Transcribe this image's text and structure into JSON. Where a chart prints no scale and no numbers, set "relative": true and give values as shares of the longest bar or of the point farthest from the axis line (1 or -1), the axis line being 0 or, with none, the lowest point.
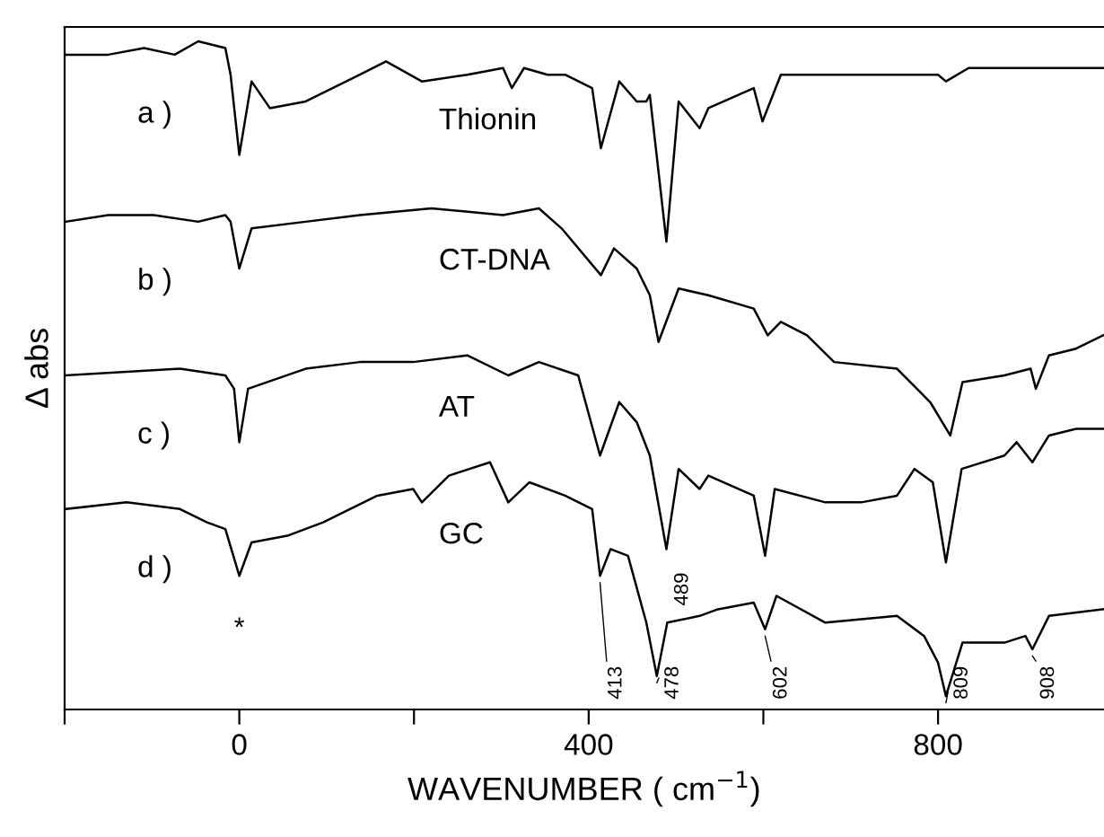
{
  "chart_data": {
    "type": "line",
    "relative": true,
    "xlabel": "WAVENUMBER ( cm$^{−1}$)",
    "ylabel": "Δ abs",
    "xlim": [
      -200,
      990
    ],
    "xticks": [
      {
        "value": -200,
        "label": null
      },
      0,
      {
        "value": 200,
        "label": null
      },
      400,
      {
        "value": 600,
        "label": null
      },
      800
    ],
    "grid": false,
    "legend": false,
    "marker": "none",
    "line_style": "solid",
    "tick_labels": "x",
    "series": [
      {
        "name": "Thionin",
        "color": "#000000",
        "x": [
          -199,
          -150,
          -109,
          -74,
          -47,
          -16,
          -10,
          0,
          14,
          35,
          76,
          138,
          168,
          209,
          261,
          302,
          312,
          326,
          353,
          373,
          404,
          414,
          435,
          455,
          466,
          470,
          489,
          503,
          527,
          537,
          589,
          599,
          620,
          671,
          753,
          800,
          809,
          835,
          989
        ],
        "values": [
          0.98,
          0.98,
          0.99,
          0.98,
          1.0,
          0.99,
          0.95,
          0.83,
          0.94,
          0.9,
          0.91,
          0.95,
          0.97,
          0.94,
          0.95,
          0.96,
          0.93,
          0.96,
          0.95,
          0.95,
          0.93,
          0.84,
          0.94,
          0.91,
          0.91,
          0.92,
          0.7,
          0.91,
          0.87,
          0.9,
          0.93,
          0.88,
          0.95,
          0.95,
          0.95,
          0.95,
          0.94,
          0.96,
          0.96
        ]
      },
      {
        "name": "CT-DNA",
        "color": "#000000",
        "x": [
          -199,
          -150,
          -98,
          -47,
          -16,
          -10,
          0,
          14,
          76,
          138,
          220,
          302,
          343,
          369,
          414,
          429,
          455,
          470,
          480,
          503,
          537,
          589,
          605,
          620,
          650,
          681,
          753,
          791,
          814,
          828,
          876,
          906,
          912,
          927,
          958,
          989
        ],
        "values": [
          0.73,
          0.74,
          0.74,
          0.73,
          0.74,
          0.73,
          0.66,
          0.72,
          0.73,
          0.74,
          0.75,
          0.74,
          0.75,
          0.72,
          0.65,
          0.69,
          0.66,
          0.62,
          0.55,
          0.63,
          0.62,
          0.6,
          0.56,
          0.58,
          0.56,
          0.52,
          0.51,
          0.46,
          0.41,
          0.49,
          0.5,
          0.51,
          0.48,
          0.53,
          0.54,
          0.56
        ]
      },
      {
        "name": "AT",
        "color": "#000000",
        "x": [
          -199,
          -68,
          -16,
          -6,
          0,
          10,
          76,
          138,
          199,
          261,
          308,
          343,
          388,
          413,
          435,
          455,
          470,
          489,
          503,
          527,
          537,
          589,
          602,
          613,
          671,
          712,
          753,
          773,
          794,
          809,
          827,
          876,
          890,
          908,
          927,
          958,
          989
        ],
        "values": [
          0.5,
          0.51,
          0.5,
          0.48,
          0.4,
          0.48,
          0.51,
          0.52,
          0.52,
          0.53,
          0.5,
          0.52,
          0.5,
          0.38,
          0.46,
          0.43,
          0.38,
          0.24,
          0.36,
          0.33,
          0.35,
          0.32,
          0.23,
          0.33,
          0.31,
          0.31,
          0.32,
          0.36,
          0.34,
          0.22,
          0.36,
          0.38,
          0.4,
          0.37,
          0.41,
          0.42,
          0.42
        ]
      },
      {
        "name": "GC",
        "color": "#000000",
        "x": [
          -199,
          -129,
          -68,
          -37,
          -16,
          0,
          14,
          55,
          96,
          158,
          199,
          209,
          240,
          287,
          308,
          332,
          373,
          404,
          413,
          425,
          445,
          466,
          478,
          490,
          527,
          548,
          589,
          602,
          615,
          671,
          753,
          784,
          800,
          809,
          828,
          876,
          900,
          908,
          927,
          989
        ],
        "values": [
          0.3,
          0.31,
          0.3,
          0.28,
          0.27,
          0.2,
          0.25,
          0.26,
          0.28,
          0.32,
          0.33,
          0.31,
          0.35,
          0.37,
          0.31,
          0.34,
          0.32,
          0.3,
          0.2,
          0.24,
          0.23,
          0.13,
          0.05,
          0.13,
          0.14,
          0.15,
          0.16,
          0.12,
          0.17,
          0.13,
          0.14,
          0.11,
          0.07,
          0.02,
          0.1,
          0.1,
          0.11,
          0.09,
          0.14,
          0.15
        ]
      }
    ],
    "annotations": [
      "a )",
      "b )",
      "c )",
      "d )",
      {
        "text": "*",
        "x": 0,
        "y": 0.2
      },
      {
        "text": "413",
        "x": 413,
        "y": 0.2
      },
      {
        "text": "478",
        "x": 478,
        "y": 0.05
      },
      {
        "text": "602",
        "x": 602,
        "y": 0.12
      },
      {
        "text": "809",
        "x": 809,
        "y": 0.02
      },
      {
        "text": "908",
        "x": 908,
        "y": 0.09
      },
      {
        "text": "489",
        "x": 489,
        "y": 0.24
      }
    ]
  }
}
